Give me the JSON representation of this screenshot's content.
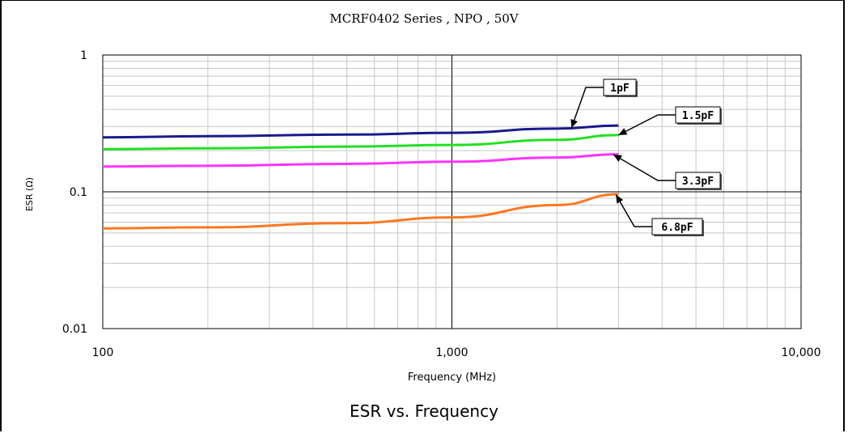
{
  "chart_data": {
    "type": "line",
    "title": "MCRF0402 Series , NPO , 50V",
    "caption": "ESR vs. Frequency",
    "xlabel": "Frequency (MHz)",
    "ylabel": "ESR (Ω)",
    "x_scale": "log",
    "y_scale": "log",
    "xlim": [
      100,
      10000
    ],
    "ylim": [
      0.01,
      1
    ],
    "x_ticks": [
      {
        "value": 100,
        "label": "100"
      },
      {
        "value": 1000,
        "label": "1,000"
      },
      {
        "value": 10000,
        "label": "10,000"
      }
    ],
    "y_ticks": [
      {
        "value": 1,
        "label": "1"
      },
      {
        "value": 0.1,
        "label": "0.1"
      },
      {
        "value": 0.01,
        "label": "0.01"
      }
    ],
    "grid": true,
    "series": [
      {
        "name": "1pF",
        "color": "#1a1a8c",
        "x": [
          100,
          200,
          500,
          1000,
          2000,
          3000
        ],
        "y": [
          0.25,
          0.255,
          0.262,
          0.27,
          0.29,
          0.305
        ]
      },
      {
        "name": "1.5pF",
        "color": "#22e022",
        "x": [
          100,
          200,
          500,
          1000,
          2000,
          3000
        ],
        "y": [
          0.205,
          0.208,
          0.214,
          0.22,
          0.24,
          0.26
        ]
      },
      {
        "name": "3.3pF",
        "color": "#ff33ff",
        "x": [
          100,
          200,
          500,
          1000,
          2000,
          3000
        ],
        "y": [
          0.153,
          0.155,
          0.16,
          0.166,
          0.178,
          0.188
        ]
      },
      {
        "name": "6.8pF",
        "color": "#ff7722",
        "x": [
          100,
          200,
          500,
          1000,
          2000,
          3000
        ],
        "y": [
          0.054,
          0.055,
          0.059,
          0.065,
          0.08,
          0.096
        ]
      }
    ]
  }
}
